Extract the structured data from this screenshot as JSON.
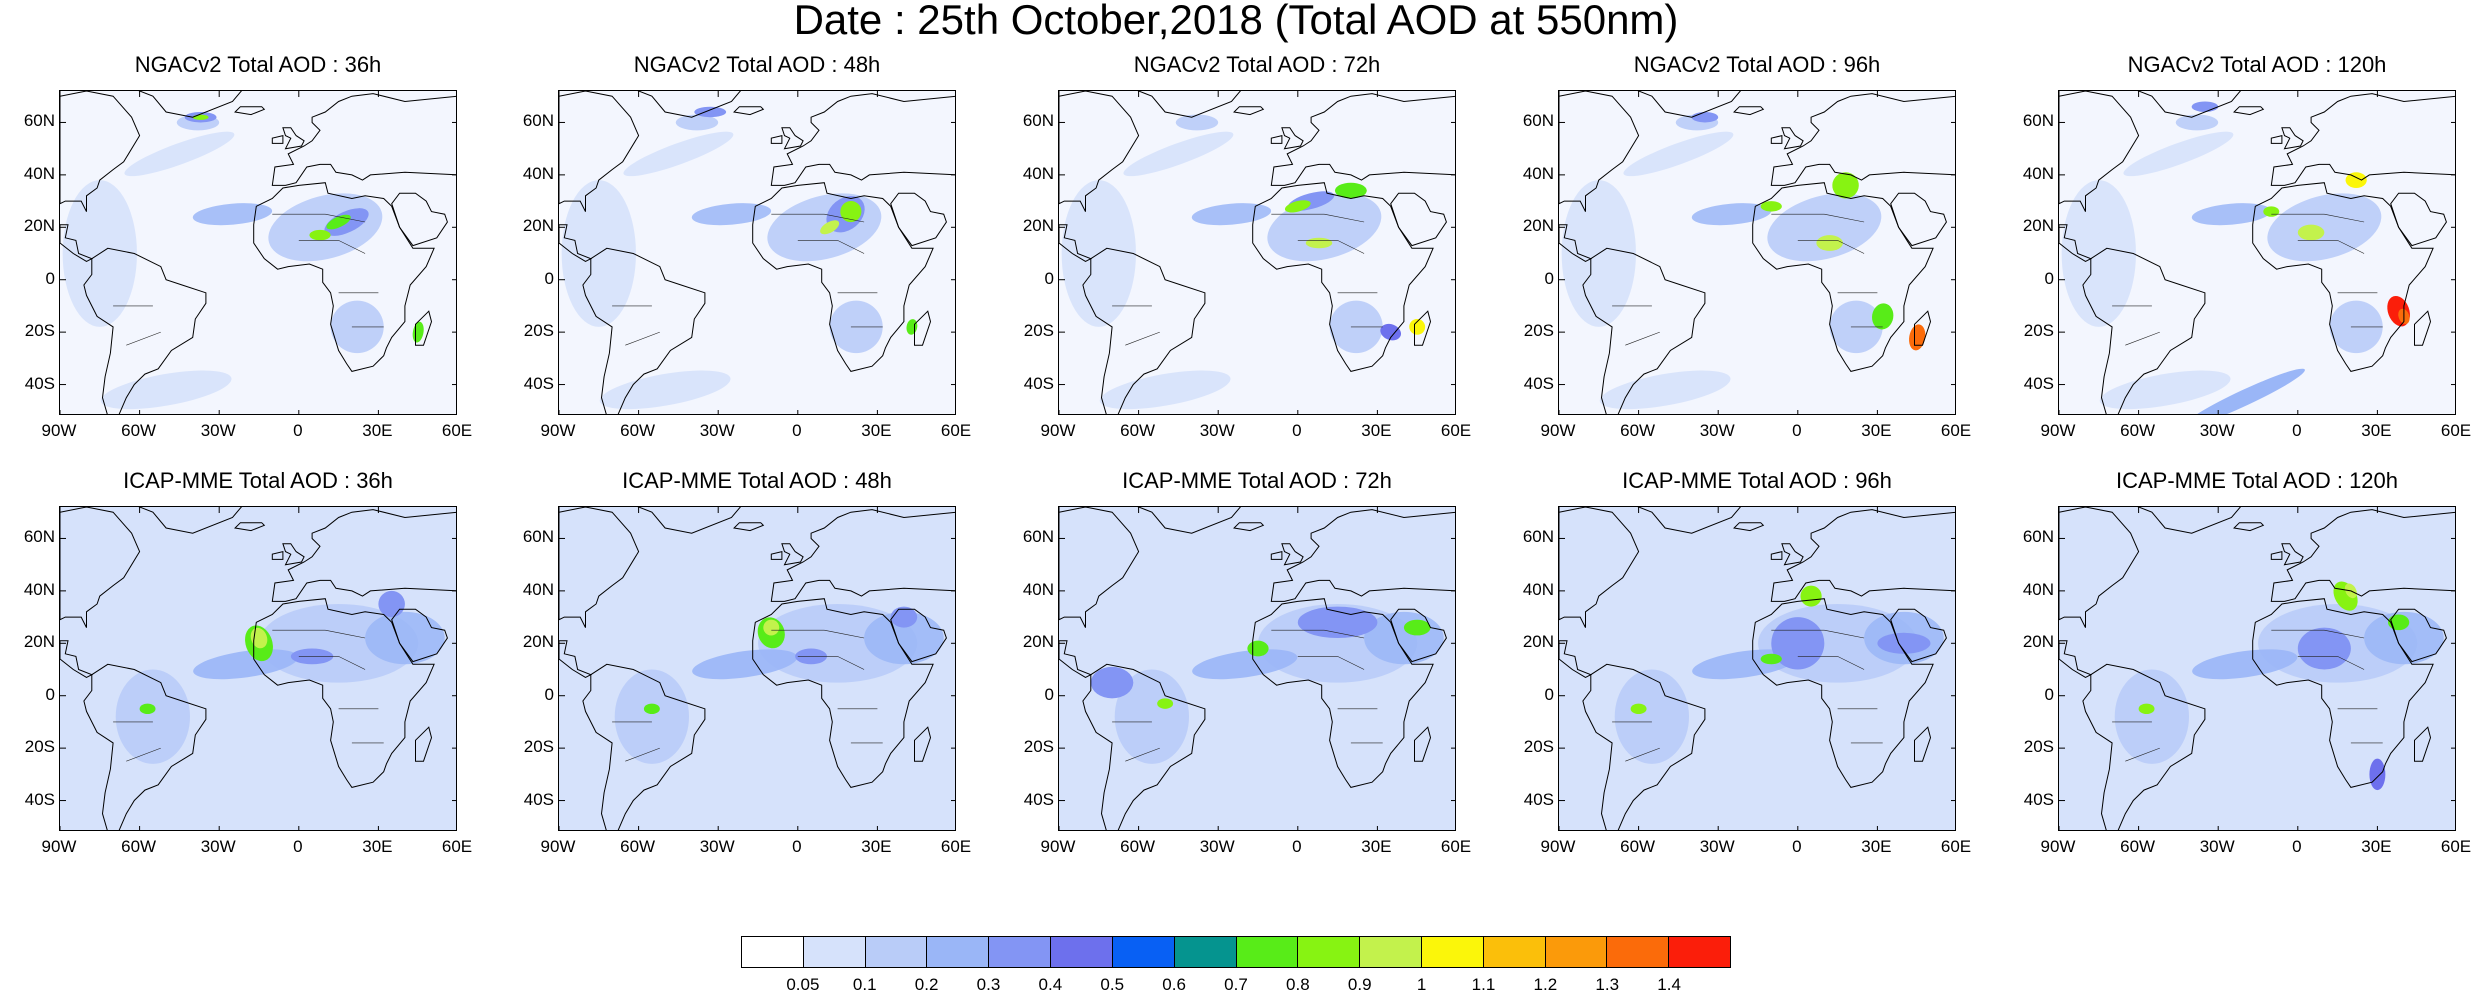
{
  "title": "Date : 25th October,2018 (Total AOD at 550nm)",
  "lat_labels": [
    "60N",
    "40N",
    "20N",
    "0",
    "20S",
    "40S"
  ],
  "lon_labels": [
    "90W",
    "60W",
    "30W",
    "0",
    "30E",
    "60E"
  ],
  "rows": [
    {
      "model": "NGACv2",
      "panels": [
        {
          "title": "NGACv2 Total AOD : 36h",
          "lead_hours": 36
        },
        {
          "title": "NGACv2 Total AOD : 48h",
          "lead_hours": 48
        },
        {
          "title": "NGACv2 Total AOD : 72h",
          "lead_hours": 72
        },
        {
          "title": "NGACv2 Total AOD : 96h",
          "lead_hours": 96
        },
        {
          "title": "NGACv2 Total AOD : 120h",
          "lead_hours": 120
        }
      ]
    },
    {
      "model": "ICAP-MME",
      "panels": [
        {
          "title": "ICAP-MME Total AOD : 36h",
          "lead_hours": 36
        },
        {
          "title": "ICAP-MME Total AOD : 48h",
          "lead_hours": 48
        },
        {
          "title": "ICAP-MME Total AOD : 72h",
          "lead_hours": 72
        },
        {
          "title": "ICAP-MME Total AOD : 96h",
          "lead_hours": 96
        },
        {
          "title": "ICAP-MME Total AOD : 120h",
          "lead_hours": 120
        }
      ]
    }
  ],
  "colorbar": {
    "colors": [
      "#ffffff",
      "#d6e2fb",
      "#b9ccf8",
      "#9ab6f7",
      "#8395f4",
      "#6d70ed",
      "#0860f4",
      "#05948f",
      "#58ec18",
      "#87f312",
      "#c3f24c",
      "#fbf60a",
      "#fbbf0a",
      "#fb9a0a",
      "#fb6b0a",
      "#fb1e0a"
    ],
    "labels": [
      "0.05",
      "0.1",
      "0.2",
      "0.3",
      "0.4",
      "0.5",
      "0.6",
      "0.7",
      "0.8",
      "0.9",
      "1",
      "1.1",
      "1.2",
      "1.3",
      "1.4"
    ]
  }
}
